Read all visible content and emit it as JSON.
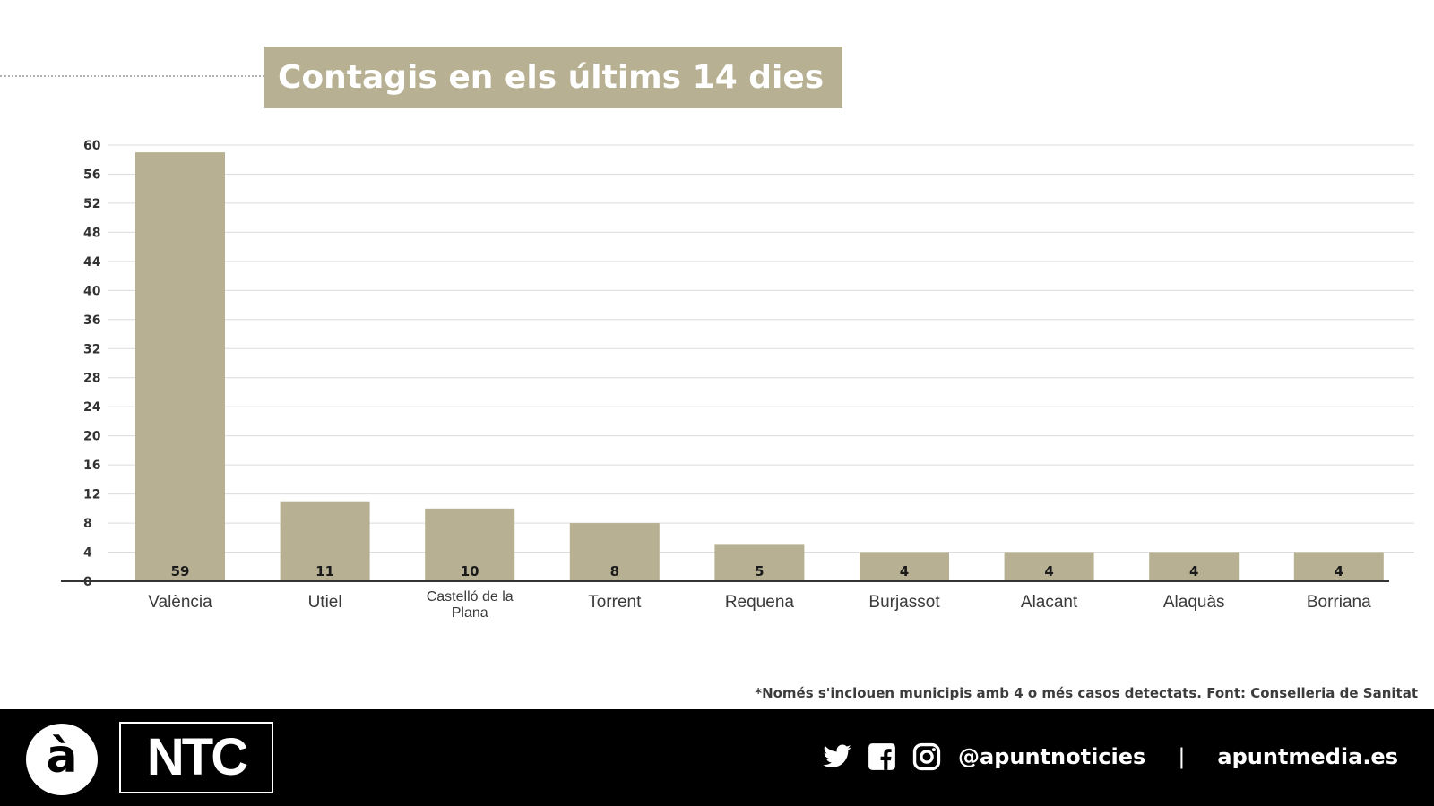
{
  "title": "Contagis en els últims 14 dies",
  "footnote": "*Només s'inclouen municipis amb 4 o més casos detectats. Font: Conselleria de Sanitat",
  "footer": {
    "logo_mark": "à",
    "logo_text": "NTC",
    "handle": "@apuntnoticies",
    "separator": "|",
    "website": "apuntmedia.es",
    "icons": [
      "twitter-icon",
      "facebook-icon",
      "instagram-icon"
    ]
  },
  "colors": {
    "bar": "#b7b092",
    "title_bg": "#b7b092",
    "footer_bg": "#000000",
    "grid": "#dcdcdc",
    "axis": "#333333"
  },
  "chart_data": {
    "type": "bar",
    "title": "Contagis en els últims 14 dies",
    "categories": [
      "València",
      "Utiel",
      "Castelló de la Plana",
      "Torrent",
      "Requena",
      "Burjassot",
      "Alacant",
      "Alaquàs",
      "Borriana"
    ],
    "category_label_lines": [
      [
        "València"
      ],
      [
        "Utiel"
      ],
      [
        "Castelló de la",
        "Plana"
      ],
      [
        "Torrent"
      ],
      [
        "Requena"
      ],
      [
        "Burjassot"
      ],
      [
        "Alacant"
      ],
      [
        "Alaquàs"
      ],
      [
        "Borriana"
      ]
    ],
    "values": [
      59,
      11,
      10,
      8,
      5,
      4,
      4,
      4,
      4
    ],
    "data_labels": [
      "59",
      "11",
      "10",
      "8",
      "5",
      "4",
      "4",
      "4",
      "4"
    ],
    "yticks": [
      0,
      4,
      8,
      12,
      16,
      20,
      24,
      28,
      32,
      36,
      40,
      44,
      48,
      52,
      56,
      60
    ],
    "ylim": [
      0,
      60
    ],
    "xlabel": "",
    "ylabel": "",
    "grid": true,
    "legend": "none"
  }
}
